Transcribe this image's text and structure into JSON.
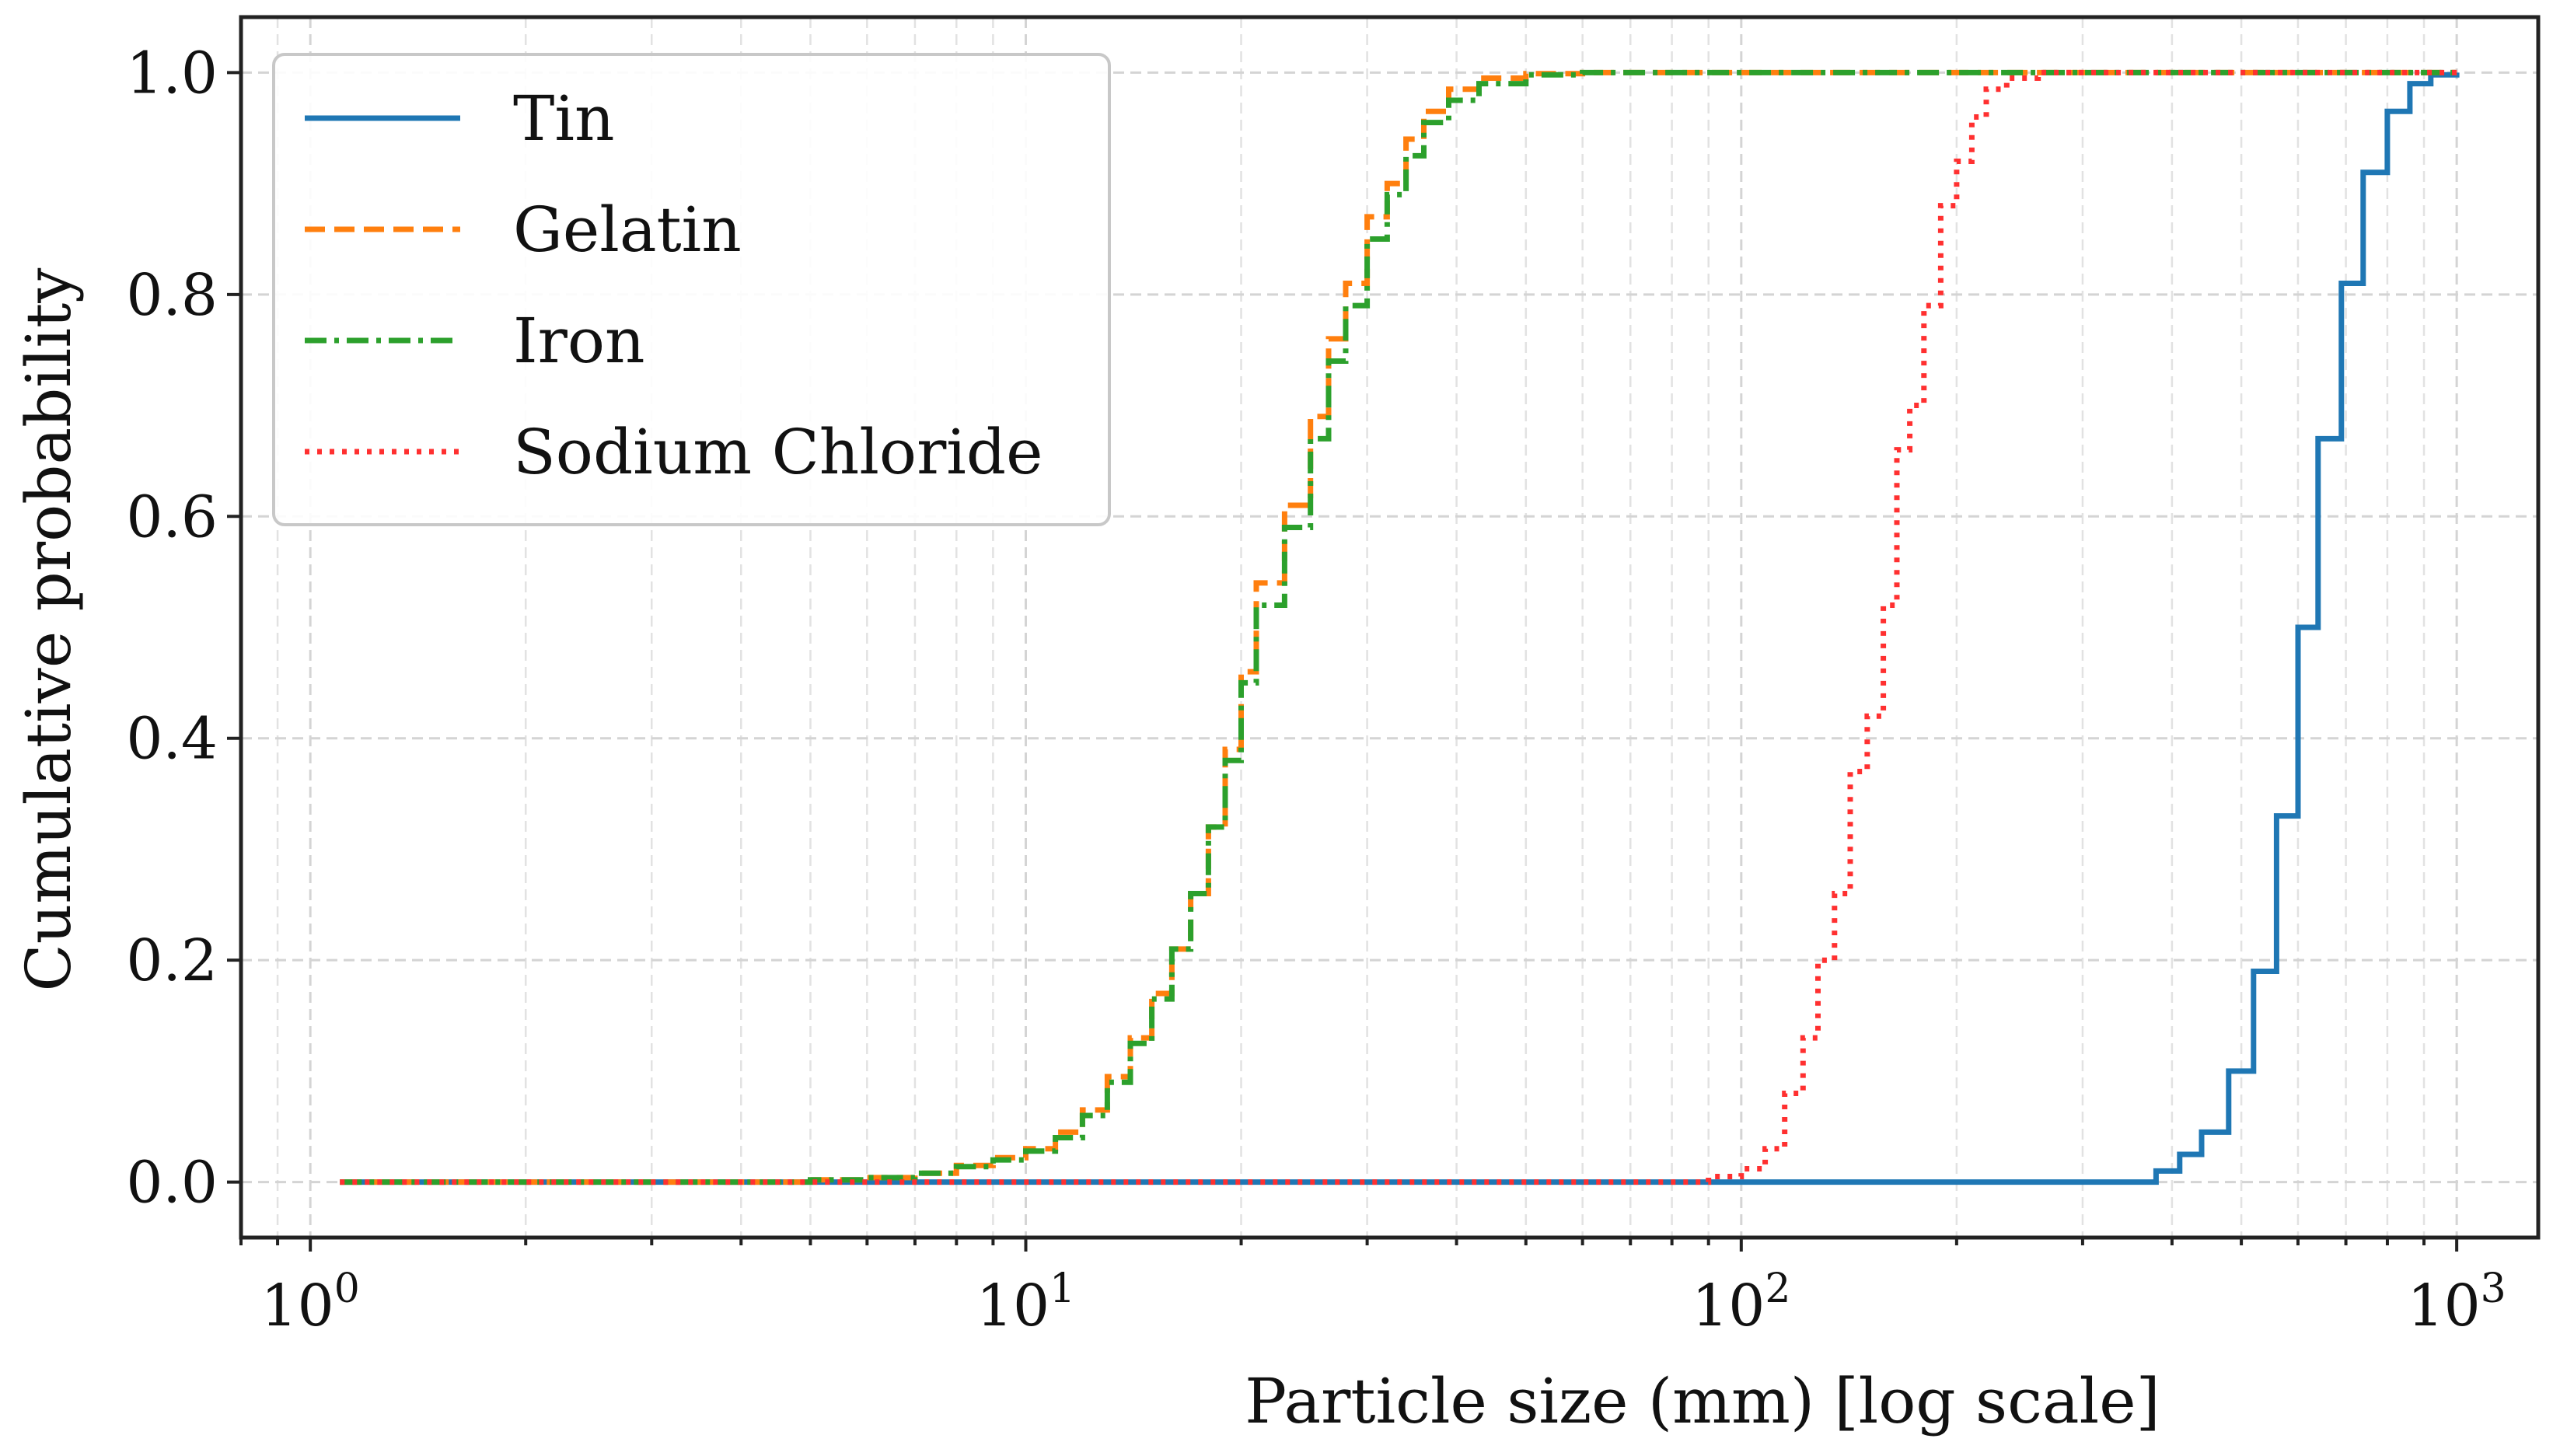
{
  "chart_data": {
    "type": "line",
    "title": "",
    "xlabel": "Particle size (mm) [log scale]",
    "ylabel": "Cumulative probability",
    "xscale": "log",
    "xlim": [
      0.8,
      1300
    ],
    "ylim": [
      -0.05,
      1.05
    ],
    "grid": true,
    "legend_position": "top-left",
    "x_ticks": [
      {
        "value": 1,
        "base": "10",
        "exp": "0"
      },
      {
        "value": 10,
        "base": "10",
        "exp": "1"
      },
      {
        "value": 100,
        "base": "10",
        "exp": "2"
      },
      {
        "value": 1000,
        "base": "10",
        "exp": "3"
      }
    ],
    "y_ticks": [
      {
        "value": 0.0,
        "label": "0.0"
      },
      {
        "value": 0.2,
        "label": "0.2"
      },
      {
        "value": 0.4,
        "label": "0.4"
      },
      {
        "value": 0.6,
        "label": "0.6"
      },
      {
        "value": 0.8,
        "label": "0.8"
      },
      {
        "value": 1.0,
        "label": "1.0"
      }
    ],
    "series": [
      {
        "name": "Tin",
        "style": "solid",
        "color": "#1f77b4",
        "points": [
          [
            1.1,
            0
          ],
          [
            330,
            0
          ],
          [
            380,
            0.01
          ],
          [
            410,
            0.025
          ],
          [
            440,
            0.045
          ],
          [
            480,
            0.1
          ],
          [
            520,
            0.19
          ],
          [
            560,
            0.33
          ],
          [
            600,
            0.5
          ],
          [
            640,
            0.67
          ],
          [
            690,
            0.81
          ],
          [
            740,
            0.91
          ],
          [
            800,
            0.965
          ],
          [
            860,
            0.99
          ],
          [
            920,
            0.998
          ],
          [
            1000,
            1.0
          ]
        ]
      },
      {
        "name": "Gelatin",
        "style": "dashed",
        "color": "#ff7f0e",
        "points": [
          [
            1.1,
            0
          ],
          [
            5,
            0.002
          ],
          [
            6,
            0.004
          ],
          [
            7,
            0.008
          ],
          [
            8,
            0.015
          ],
          [
            9,
            0.022
          ],
          [
            10,
            0.03
          ],
          [
            11,
            0.045
          ],
          [
            12,
            0.065
          ],
          [
            13,
            0.095
          ],
          [
            14,
            0.13
          ],
          [
            15,
            0.17
          ],
          [
            16,
            0.21
          ],
          [
            17,
            0.26
          ],
          [
            18,
            0.32
          ],
          [
            19,
            0.39
          ],
          [
            20,
            0.46
          ],
          [
            21,
            0.54
          ],
          [
            23,
            0.61
          ],
          [
            25,
            0.69
          ],
          [
            26.5,
            0.76
          ],
          [
            28,
            0.81
          ],
          [
            30,
            0.87
          ],
          [
            32,
            0.9
          ],
          [
            34,
            0.94
          ],
          [
            36,
            0.965
          ],
          [
            39,
            0.985
          ],
          [
            43,
            0.995
          ],
          [
            50,
            0.999
          ],
          [
            60,
            1.0
          ],
          [
            1000,
            1.0
          ]
        ]
      },
      {
        "name": "Iron",
        "style": "dashdot",
        "color": "#2ca02c",
        "points": [
          [
            1.1,
            0
          ],
          [
            5,
            0.002
          ],
          [
            6,
            0.004
          ],
          [
            7,
            0.008
          ],
          [
            8,
            0.014
          ],
          [
            9,
            0.02
          ],
          [
            10,
            0.028
          ],
          [
            11,
            0.04
          ],
          [
            12,
            0.06
          ],
          [
            13,
            0.09
          ],
          [
            14,
            0.125
          ],
          [
            15,
            0.165
          ],
          [
            16,
            0.21
          ],
          [
            17,
            0.26
          ],
          [
            18,
            0.32
          ],
          [
            19,
            0.38
          ],
          [
            20,
            0.45
          ],
          [
            21,
            0.52
          ],
          [
            23,
            0.59
          ],
          [
            25,
            0.67
          ],
          [
            26.5,
            0.74
          ],
          [
            28,
            0.79
          ],
          [
            30,
            0.85
          ],
          [
            32,
            0.89
          ],
          [
            34,
            0.925
          ],
          [
            36,
            0.955
          ],
          [
            39,
            0.975
          ],
          [
            43,
            0.99
          ],
          [
            50,
            0.998
          ],
          [
            60,
            1.0
          ],
          [
            1000,
            1.0
          ]
        ]
      },
      {
        "name": "Sodium Chloride",
        "style": "dotted",
        "color": "#ff3030",
        "points": [
          [
            1.1,
            0
          ],
          [
            80,
            0
          ],
          [
            90,
            0.005
          ],
          [
            100,
            0.012
          ],
          [
            108,
            0.03
          ],
          [
            115,
            0.08
          ],
          [
            122,
            0.13
          ],
          [
            128,
            0.2
          ],
          [
            135,
            0.26
          ],
          [
            142,
            0.37
          ],
          [
            150,
            0.42
          ],
          [
            158,
            0.52
          ],
          [
            165,
            0.66
          ],
          [
            172,
            0.7
          ],
          [
            180,
            0.79
          ],
          [
            190,
            0.88
          ],
          [
            200,
            0.92
          ],
          [
            210,
            0.96
          ],
          [
            220,
            0.985
          ],
          [
            235,
            0.995
          ],
          [
            260,
            1.0
          ],
          [
            1000,
            1.0
          ]
        ]
      }
    ]
  }
}
